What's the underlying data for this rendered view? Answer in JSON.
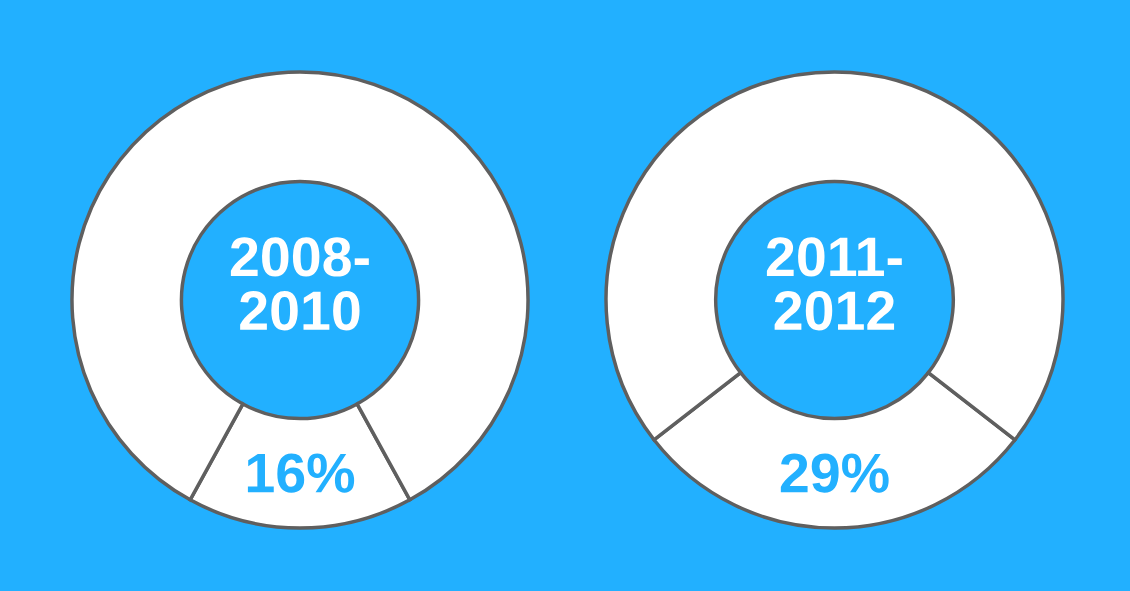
{
  "chart_data": [
    {
      "type": "donut",
      "title": "2008-\n2010",
      "categories": [
        null,
        null
      ],
      "values": [
        16,
        84
      ],
      "colors": [
        "#ffffff",
        "#ffffff"
      ],
      "value_labels": [
        "16%",
        null
      ]
    },
    {
      "type": "donut",
      "title": "2011-\n2012",
      "categories": [
        null,
        null
      ],
      "values": [
        29,
        71
      ],
      "colors": [
        "#ffffff",
        "#ffffff"
      ],
      "value_labels": [
        "29%",
        null
      ]
    }
  ]
}
